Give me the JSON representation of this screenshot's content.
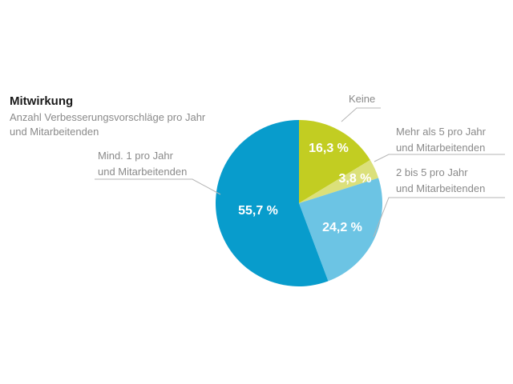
{
  "title": "Mitwirkung",
  "subtitle": "Anzahl Verbesserungsvorschläge pro Jahr und Mitarbeitenden",
  "chart_data": {
    "type": "pie",
    "slices": [
      {
        "name": "Keine",
        "label_lines": [
          "Keine"
        ],
        "value": 16.3,
        "value_label": "16,3 %",
        "color": "#c2cd22"
      },
      {
        "name": "Mehr als 5 pro Jahr und Mitarbeitenden",
        "label_lines": [
          "Mehr als 5 pro Jahr",
          "und Mitarbeitenden"
        ],
        "value": 3.8,
        "value_label": "3,8 %",
        "color": "#dbe07a"
      },
      {
        "name": "2 bis 5 pro Jahr und Mitarbeitenden",
        "label_lines": [
          "2 bis 5 pro Jahr",
          "und Mitarbeitenden"
        ],
        "value": 24.2,
        "value_label": "24,2 %",
        "color": "#6cc4e4"
      },
      {
        "name": "Mind. 1 pro Jahr und Mitarbeitenden",
        "label_lines": [
          "Mind. 1 pro Jahr",
          "und Mitarbeitenden"
        ],
        "value": 55.7,
        "value_label": "55,7 %",
        "color": "#089ccc"
      }
    ]
  }
}
